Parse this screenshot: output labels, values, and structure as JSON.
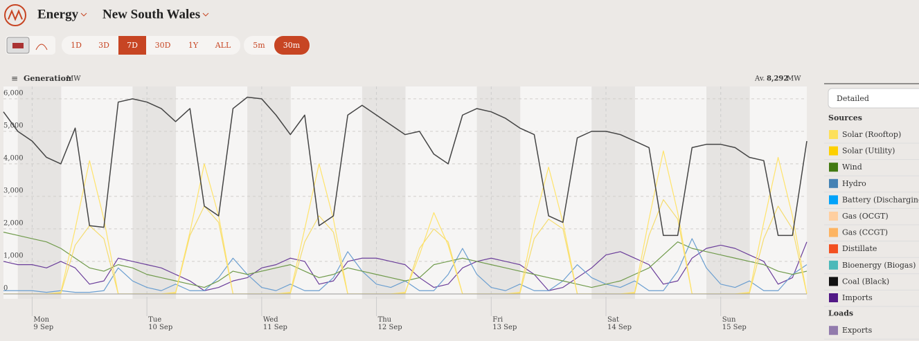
{
  "header": {
    "title": "Energy",
    "region": "New South Wales",
    "ranges": [
      {
        "label": "1D",
        "active": false
      },
      {
        "label": "3D",
        "active": false
      },
      {
        "label": "7D",
        "active": true
      },
      {
        "label": "30D",
        "active": false
      },
      {
        "label": "1Y",
        "active": false
      },
      {
        "label": "ALL",
        "active": false
      }
    ],
    "intervals": [
      {
        "label": "5m",
        "active": false
      },
      {
        "label": "30m",
        "active": true
      }
    ]
  },
  "chart_data": {
    "type": "line",
    "title": "Generation",
    "unit": "MW",
    "average_prefix": "Av.",
    "average_value": "8,292",
    "average_unit": "MW",
    "categories": [
      null,
      null,
      "Mon 9 Sep",
      null,
      null,
      null,
      null,
      null,
      null,
      null,
      "Tue 10 Sep",
      null,
      null,
      null,
      null,
      null,
      null,
      null,
      "Wed 11 Sep",
      null,
      null,
      null,
      null,
      null,
      null,
      null,
      "Thu 12 Sep",
      null,
      null,
      null,
      null,
      null,
      null,
      null,
      "Fri 13 Sep",
      null,
      null,
      null,
      null,
      null,
      null,
      null,
      "Sat 14 Sep",
      null,
      null,
      null,
      null,
      null,
      null,
      null,
      "Sun 15 Sep",
      null,
      null,
      null,
      null,
      null,
      null
    ],
    "ylim": [
      -150,
      6380
    ],
    "yticks": [
      0,
      {
        "value": 1000,
        "label": "1,000"
      },
      {
        "value": 2000,
        "label": "2,000"
      },
      {
        "value": 3000,
        "label": "3,000"
      },
      {
        "value": 4000,
        "label": "4,000"
      },
      {
        "value": 5000,
        "label": "5,000"
      },
      {
        "value": 6000,
        "label": "6,000"
      }
    ],
    "grid": true,
    "series": [
      {
        "name": "Imports",
        "color": "#6a3d9a",
        "values": [
          1000,
          900,
          900,
          800,
          1000,
          800,
          300,
          400,
          1100,
          1000,
          900,
          800,
          600,
          400,
          100,
          200,
          400,
          500,
          800,
          900,
          1100,
          1000,
          300,
          400,
          1000,
          1100,
          1100,
          1000,
          900,
          500,
          200,
          300,
          800,
          1000,
          1100,
          1000,
          900,
          600,
          100,
          200,
          500,
          800,
          1200,
          1300,
          1100,
          900,
          300,
          400,
          1100,
          1400,
          1500,
          1400,
          1200,
          1000,
          300,
          500,
          1600
        ]
      },
      {
        "name": "Hydro",
        "color": "#6a9ed0",
        "values": [
          100,
          100,
          100,
          50,
          100,
          50,
          50,
          100,
          800,
          400,
          200,
          100,
          300,
          100,
          100,
          500,
          1100,
          600,
          200,
          100,
          300,
          100,
          100,
          500,
          1300,
          700,
          300,
          200,
          400,
          100,
          100,
          600,
          1400,
          600,
          200,
          100,
          300,
          100,
          100,
          400,
          900,
          500,
          300,
          200,
          400,
          100,
          100,
          700,
          1700,
          800,
          300,
          200,
          400,
          100,
          100,
          600,
          900
        ]
      },
      {
        "name": "Wind",
        "color": "#6f9a4a",
        "values": [
          1900,
          1800,
          1700,
          1600,
          1400,
          1100,
          800,
          700,
          900,
          800,
          600,
          500,
          400,
          300,
          200,
          400,
          700,
          600,
          700,
          800,
          900,
          700,
          500,
          600,
          800,
          700,
          600,
          500,
          400,
          500,
          900,
          1000,
          1100,
          1000,
          900,
          800,
          700,
          600,
          500,
          400,
          300,
          200,
          300,
          400,
          600,
          800,
          1200,
          1600,
          1400,
          1300,
          1200,
          1100,
          1000,
          900,
          700,
          600,
          700
        ]
      },
      {
        "name": "Solar (Utility)",
        "color": "#f5dc6e",
        "values": [
          0,
          0,
          0,
          0,
          20,
          1500,
          2100,
          1700,
          0,
          0,
          0,
          0,
          20,
          1800,
          2700,
          2200,
          0,
          0,
          0,
          0,
          20,
          1600,
          2400,
          1900,
          0,
          0,
          0,
          0,
          20,
          1400,
          2000,
          1600,
          0,
          0,
          0,
          0,
          20,
          1700,
          2300,
          2000,
          0,
          0,
          0,
          0,
          20,
          1800,
          2900,
          2300,
          0,
          0,
          0,
          0,
          20,
          1700,
          2700,
          2000,
          0
        ]
      },
      {
        "name": "Solar (Rooftop)",
        "color": "#ffe36a",
        "values": [
          0,
          0,
          0,
          0,
          50,
          2000,
          4100,
          2300,
          0,
          0,
          0,
          0,
          50,
          1900,
          4000,
          2400,
          0,
          0,
          0,
          0,
          50,
          2000,
          4000,
          2300,
          0,
          0,
          0,
          0,
          50,
          1200,
          2500,
          1500,
          0,
          0,
          0,
          0,
          50,
          2200,
          3900,
          2200,
          0,
          0,
          0,
          0,
          50,
          2300,
          4400,
          2500,
          0,
          0,
          0,
          0,
          50,
          2200,
          4200,
          2400,
          0
        ]
      },
      {
        "name": "Coal (Black)",
        "color": "#444444",
        "values": [
          5600,
          5000,
          4700,
          4200,
          4000,
          5100,
          2100,
          2050,
          5900,
          6000,
          5900,
          5700,
          5300,
          5700,
          2700,
          2400,
          5700,
          6050,
          6000,
          5500,
          4900,
          5500,
          2100,
          2400,
          5500,
          5800,
          5500,
          5200,
          4900,
          5000,
          4300,
          4000,
          5500,
          5700,
          5600,
          5400,
          5100,
          4900,
          2400,
          2200,
          4800,
          5000,
          5000,
          4900,
          4700,
          4500,
          1800,
          1800,
          4500,
          4600,
          4600,
          4500,
          4200,
          4100,
          1800,
          1800,
          4700
        ]
      }
    ]
  },
  "sidebar": {
    "dropdown": "Detailed",
    "sources_heading": "Sources",
    "loads_heading": "Loads",
    "sources": [
      {
        "name": "Solar (Rooftop)",
        "color": "#fde05b"
      },
      {
        "name": "Solar (Utility)",
        "color": "#fdd000"
      },
      {
        "name": "Wind",
        "color": "#437a12"
      },
      {
        "name": "Hydro",
        "color": "#4582b4"
      },
      {
        "name": "Battery (Discharging)",
        "color": "#00a2fa"
      },
      {
        "name": "Gas (OCGT)",
        "color": "#ffcfa0"
      },
      {
        "name": "Gas (CCGT)",
        "color": "#fdb462"
      },
      {
        "name": "Distillate",
        "color": "#f35020"
      },
      {
        "name": "Bioenergy (Biogas)",
        "color": "#4cb9b9"
      },
      {
        "name": "Coal (Black)",
        "color": "#121212"
      },
      {
        "name": "Imports",
        "color": "#521986"
      }
    ],
    "loads": [
      {
        "name": "Exports",
        "color": "#927bad"
      }
    ]
  }
}
